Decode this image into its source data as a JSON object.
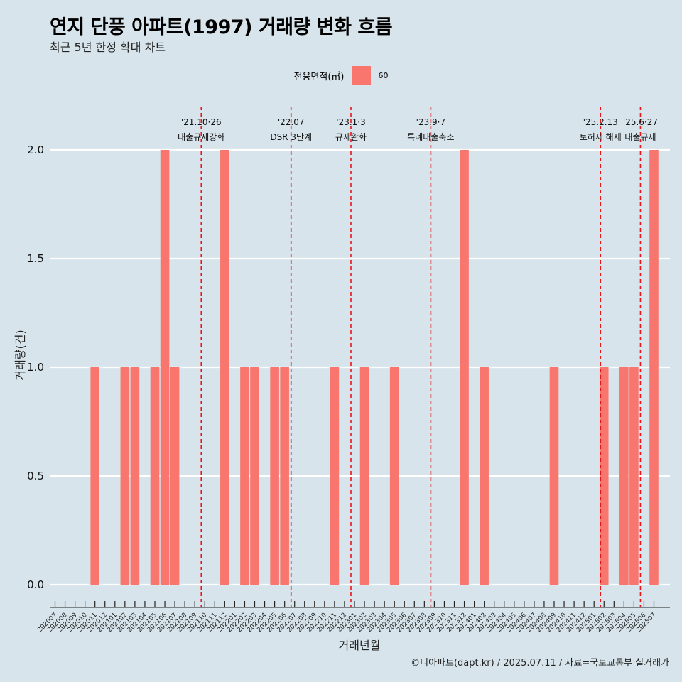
{
  "title": "연지 단풍 아파트(1997) 거래량 변화 흐름",
  "subtitle": "최근 5년 한정 확대 차트",
  "legend": {
    "title": "전용면적(㎡)",
    "item": "60",
    "color": "#f8766d"
  },
  "caption": "©디아파트(dapt.kr) / 2025.07.11 / 자료=국토교통부 실거래가",
  "chart_data": {
    "type": "bar",
    "title": "연지 단풍 아파트(1997) 거래량 변화 흐름",
    "subtitle": "최근 5년 한정 확대 차트",
    "xlabel": "거래년월",
    "ylabel": "거래량(건)",
    "ylim": [
      0,
      2
    ],
    "yticks": [
      "0.0",
      "0.5",
      "1.0",
      "1.5",
      "2.0"
    ],
    "grid": true,
    "legend_position": "top",
    "categories": [
      "202007",
      "202008",
      "202009",
      "202010",
      "202011",
      "202012",
      "202101",
      "202102",
      "202103",
      "202104",
      "202105",
      "202106",
      "202107",
      "202108",
      "202109",
      "202110",
      "202111",
      "202112",
      "202201",
      "202202",
      "202203",
      "202204",
      "202205",
      "202206",
      "202207",
      "202208",
      "202209",
      "202210",
      "202211",
      "202212",
      "202301",
      "202302",
      "202303",
      "202304",
      "202305",
      "202306",
      "202307",
      "202308",
      "202309",
      "202310",
      "202311",
      "202312",
      "202401",
      "202402",
      "202403",
      "202404",
      "202405",
      "202406",
      "202407",
      "202408",
      "202409",
      "202410",
      "202411",
      "202412",
      "202501",
      "202502",
      "202503",
      "202504",
      "202505",
      "202506",
      "202507"
    ],
    "series": [
      {
        "name": "60",
        "color": "#f8766d",
        "values": [
          0,
          0,
          0,
          0,
          1,
          0,
          0,
          1,
          1,
          0,
          1,
          2,
          1,
          0,
          0,
          0,
          0,
          2,
          0,
          1,
          1,
          0,
          1,
          1,
          0,
          0,
          0,
          0,
          1,
          0,
          0,
          1,
          0,
          0,
          1,
          0,
          0,
          0,
          0,
          0,
          0,
          2,
          0,
          1,
          0,
          0,
          0,
          0,
          0,
          0,
          1,
          0,
          0,
          0,
          0,
          1,
          0,
          1,
          1,
          0,
          2
        ]
      }
    ],
    "annotations": [
      {
        "month": "202110",
        "date": "'21.10·26",
        "label": "대출규제강화"
      },
      {
        "month": "202207",
        "date": "'22.07",
        "label": "DSR 3단계"
      },
      {
        "month": "202301",
        "date": "'23.1·3",
        "label": "규제완화"
      },
      {
        "month": "202309",
        "date": "'23.9·7",
        "label": "특례대출축소"
      },
      {
        "month": "202502",
        "date": "'25.2.13",
        "label": "토허제 해제"
      },
      {
        "month": "202506",
        "date": "'25.6·27",
        "label": "대출규제"
      }
    ]
  }
}
